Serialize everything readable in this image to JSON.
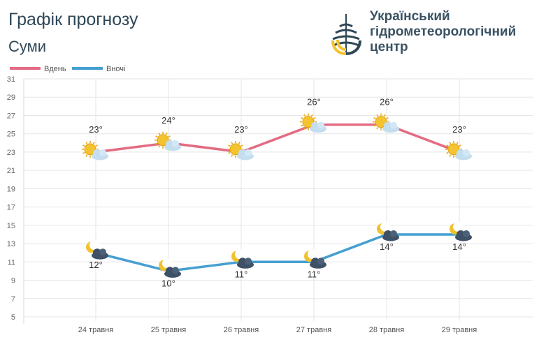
{
  "header": {
    "title": "Графік прогнозу",
    "city": "Суми",
    "org_lines": [
      "Український",
      "гідрометеорологічний",
      "центр"
    ]
  },
  "colors": {
    "day": "#e36b82",
    "night": "#459fd1",
    "grid": "#e6e6e6",
    "logo_dark": "#2f4756",
    "logo_yellow": "#f2c230"
  },
  "chart_data": {
    "type": "line",
    "categories": [
      "24 травня",
      "25 травня",
      "26 травня",
      "27 травня",
      "28 травня",
      "29 травня"
    ],
    "series": [
      {
        "name": "Вдень",
        "values": [
          23,
          24,
          23,
          26,
          26,
          23
        ],
        "labels": [
          "23°",
          "24°",
          "23°",
          "26°",
          "26°",
          "23°"
        ],
        "icons": [
          "sun-cloud-icon",
          "sun-cloud-icon",
          "sun-cloud-icon",
          "sun-cloud-icon",
          "sun-cloud-icon",
          "sun-cloud-icon"
        ]
      },
      {
        "name": "Вночі",
        "values": [
          12,
          10,
          11,
          11,
          14,
          14
        ],
        "labels": [
          "12°",
          "10°",
          "11°",
          "11°",
          "14°",
          "14°"
        ],
        "icons": [
          "moon-cloud-icon",
          "moon-cloud-icon",
          "moon-cloud-icon",
          "moon-cloud-icon",
          "moon-cloud-icon",
          "moon-cloud-icon"
        ]
      }
    ],
    "ylim": [
      5,
      31
    ],
    "yticks": [
      "31",
      "29",
      "27",
      "25",
      "23",
      "21",
      "19",
      "17",
      "15",
      "13",
      "11",
      "9",
      "7",
      "5"
    ],
    "grid": true,
    "legend": "top-left"
  }
}
